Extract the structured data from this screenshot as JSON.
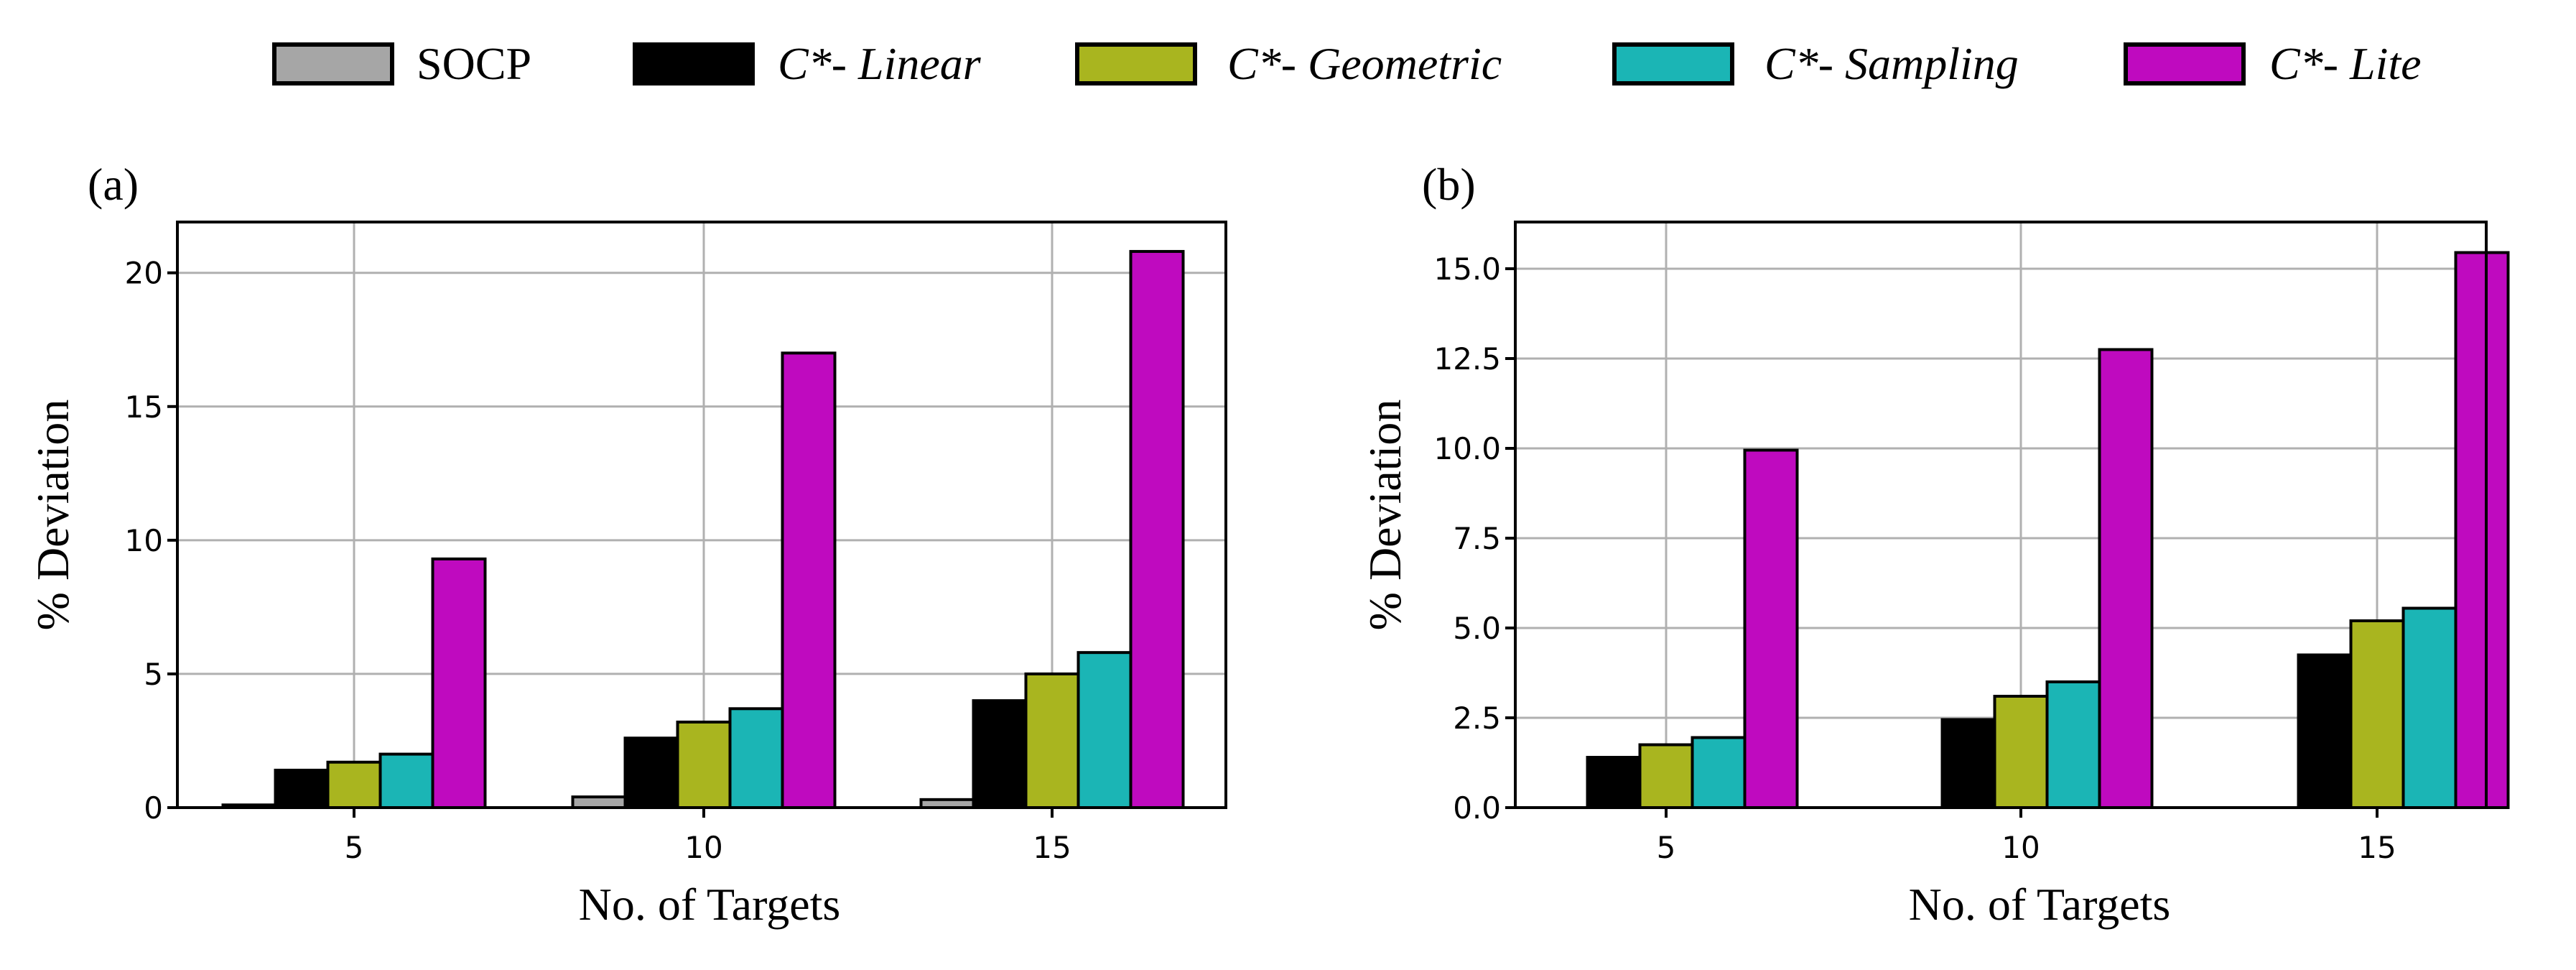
{
  "legend": {
    "placement": "top-center",
    "entries": [
      {
        "label_plain": "SOCP",
        "label_prefix": "",
        "label_italic": "",
        "color": "#a6a6a6"
      },
      {
        "label_plain": "",
        "label_prefix": "C*",
        "label_italic": "- Linear",
        "color": "#000000"
      },
      {
        "label_plain": "",
        "label_prefix": "C*",
        "label_italic": "- Geometric",
        "color": "#a9b51f"
      },
      {
        "label_plain": "",
        "label_prefix": "C*",
        "label_italic": "- Sampling",
        "color": "#1bb5b5"
      },
      {
        "label_plain": "",
        "label_prefix": "C*",
        "label_italic": "- Lite",
        "color": "#bf0abf"
      }
    ]
  },
  "chart_data": [
    {
      "type": "bar",
      "panel_label": "(a)",
      "categories": [
        "5",
        "10",
        "15"
      ],
      "series": [
        {
          "name": "SOCP",
          "values": [
            0.1,
            0.4,
            0.3
          ]
        },
        {
          "name": "C*- Linear",
          "values": [
            1.4,
            2.6,
            4.0
          ]
        },
        {
          "name": "C*- Geometric",
          "values": [
            1.7,
            3.2,
            5.0
          ]
        },
        {
          "name": "C*- Sampling",
          "values": [
            2.0,
            3.7,
            5.8
          ]
        },
        {
          "name": "C*- Lite",
          "values": [
            9.3,
            17.0,
            20.8
          ]
        }
      ],
      "xlabel": "No. of Targets",
      "ylabel": "% Deviation",
      "ylim": [
        0,
        21.9
      ],
      "yticks": [
        0,
        5,
        10,
        15,
        20
      ],
      "ytick_labels": [
        "0",
        "5",
        "10",
        "15",
        "20"
      ],
      "grid": true
    },
    {
      "type": "bar",
      "panel_label": "(b)",
      "categories": [
        "5",
        "10",
        "15"
      ],
      "series": [
        {
          "name": "SOCP",
          "values": [
            0,
            0,
            0
          ]
        },
        {
          "name": "C*- Linear",
          "values": [
            1.4,
            2.45,
            4.25
          ]
        },
        {
          "name": "C*- Geometric",
          "values": [
            1.75,
            3.1,
            5.2
          ]
        },
        {
          "name": "C*- Sampling",
          "values": [
            1.95,
            3.5,
            5.55
          ]
        },
        {
          "name": "C*- Lite",
          "values": [
            9.95,
            12.75,
            15.45
          ]
        }
      ],
      "xlabel": "No. of Targets",
      "ylabel": "% Deviation",
      "ylim": [
        0,
        16.3
      ],
      "yticks": [
        0,
        2.5,
        5,
        7.5,
        10,
        12.5,
        15
      ],
      "ytick_labels": [
        "0.0",
        "2.5",
        "5.0",
        "7.5",
        "10.0",
        "12.5",
        "15.0"
      ],
      "grid": true
    }
  ]
}
